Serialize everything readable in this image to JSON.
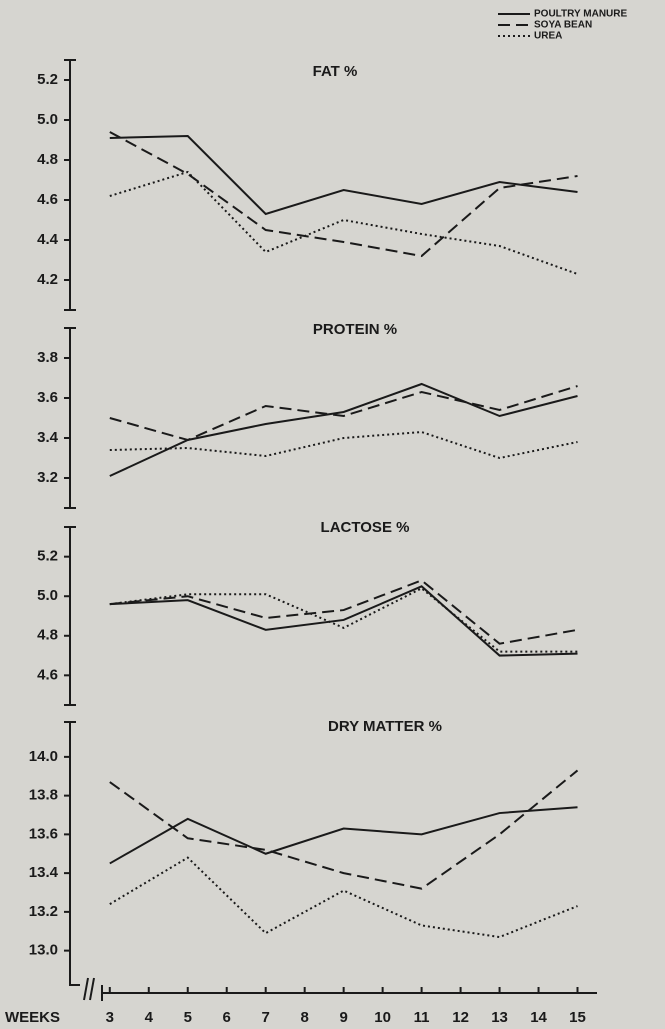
{
  "legend": [
    {
      "name": "POULTRY MANURE",
      "dash": "solid"
    },
    {
      "name": "SOYA BEAN",
      "dash": "dashed"
    },
    {
      "name": "UREA",
      "dash": "dotted"
    }
  ],
  "x_axis": {
    "label": "WEEKS",
    "xlim": [
      2.8,
      15.5
    ],
    "xticks": [
      3,
      4,
      5,
      6,
      7,
      8,
      9,
      10,
      11,
      12,
      13,
      14,
      15
    ]
  },
  "color": "#1a1a1a",
  "chart_data": [
    {
      "type": "line",
      "title": "FAT %",
      "x": [
        3,
        5,
        7,
        9,
        11,
        13,
        15
      ],
      "series": [
        {
          "values": [
            4.91,
            4.92,
            4.53,
            4.65,
            4.58,
            4.69,
            4.64
          ]
        },
        {
          "values": [
            4.94,
            4.73,
            4.45,
            4.39,
            4.32,
            4.66,
            4.72
          ]
        },
        {
          "values": [
            4.62,
            4.74,
            4.34,
            4.5,
            4.43,
            4.37,
            4.23
          ]
        }
      ],
      "ylim": [
        4.05,
        5.3
      ],
      "yticks": [
        {
          "value": 4.2,
          "label": "4.2"
        },
        {
          "value": 4.4,
          "label": "4.4"
        },
        {
          "value": 4.6,
          "label": "4.6"
        },
        {
          "value": 4.8,
          "label": "4.8"
        },
        {
          "value": 5.0,
          "label": "5.0"
        },
        {
          "value": 5.2,
          "label": "5.2"
        }
      ]
    },
    {
      "type": "line",
      "title": "PROTEIN %",
      "x": [
        3,
        5,
        7,
        9,
        11,
        13,
        15
      ],
      "series": [
        {
          "values": [
            3.21,
            3.39,
            3.47,
            3.53,
            3.67,
            3.51,
            3.61
          ]
        },
        {
          "values": [
            3.5,
            3.39,
            3.56,
            3.51,
            3.63,
            3.54,
            3.66
          ]
        },
        {
          "values": [
            3.34,
            3.35,
            3.31,
            3.4,
            3.43,
            3.3,
            3.38
          ]
        }
      ],
      "ylim": [
        3.05,
        3.95
      ],
      "yticks": [
        {
          "value": 3.2,
          "label": "3.2"
        },
        {
          "value": 3.4,
          "label": "3.4"
        },
        {
          "value": 3.6,
          "label": "3.6"
        },
        {
          "value": 3.8,
          "label": "3.8"
        }
      ]
    },
    {
      "type": "line",
      "title": "LACTOSE %",
      "x": [
        3,
        5,
        7,
        9,
        11,
        13,
        15
      ],
      "series": [
        {
          "values": [
            4.96,
            4.98,
            4.83,
            4.88,
            5.05,
            4.7,
            4.71
          ]
        },
        {
          "values": [
            4.96,
            5.0,
            4.89,
            4.93,
            5.08,
            4.76,
            4.83
          ]
        },
        {
          "values": [
            4.96,
            5.01,
            5.01,
            4.84,
            5.04,
            4.72,
            4.72
          ]
        }
      ],
      "ylim": [
        4.45,
        5.35
      ],
      "yticks": [
        {
          "value": 4.6,
          "label": "4.6"
        },
        {
          "value": 4.8,
          "label": "4.8"
        },
        {
          "value": 5.0,
          "label": "5.0"
        },
        {
          "value": 5.2,
          "label": "5.2"
        }
      ]
    },
    {
      "type": "line",
      "title": "DRY MATTER %",
      "x": [
        3,
        5,
        7,
        9,
        11,
        13,
        15
      ],
      "series": [
        {
          "values": [
            13.45,
            13.68,
            13.5,
            13.63,
            13.6,
            13.71,
            13.74
          ]
        },
        {
          "values": [
            13.87,
            13.58,
            13.52,
            13.4,
            13.32,
            13.6,
            13.93
          ]
        },
        {
          "values": [
            13.24,
            13.48,
            13.09,
            13.31,
            13.13,
            13.07,
            13.23
          ]
        }
      ],
      "ylim": [
        12.9,
        14.18
      ],
      "yticks": [
        {
          "value": 13.0,
          "label": "13.0"
        },
        {
          "value": 13.2,
          "label": "13.2"
        },
        {
          "value": 13.4,
          "label": "13.4"
        },
        {
          "value": 13.6,
          "label": "13.6"
        },
        {
          "value": 13.8,
          "label": "13.8"
        },
        {
          "value": 14.0,
          "label": "14.0"
        }
      ]
    }
  ]
}
